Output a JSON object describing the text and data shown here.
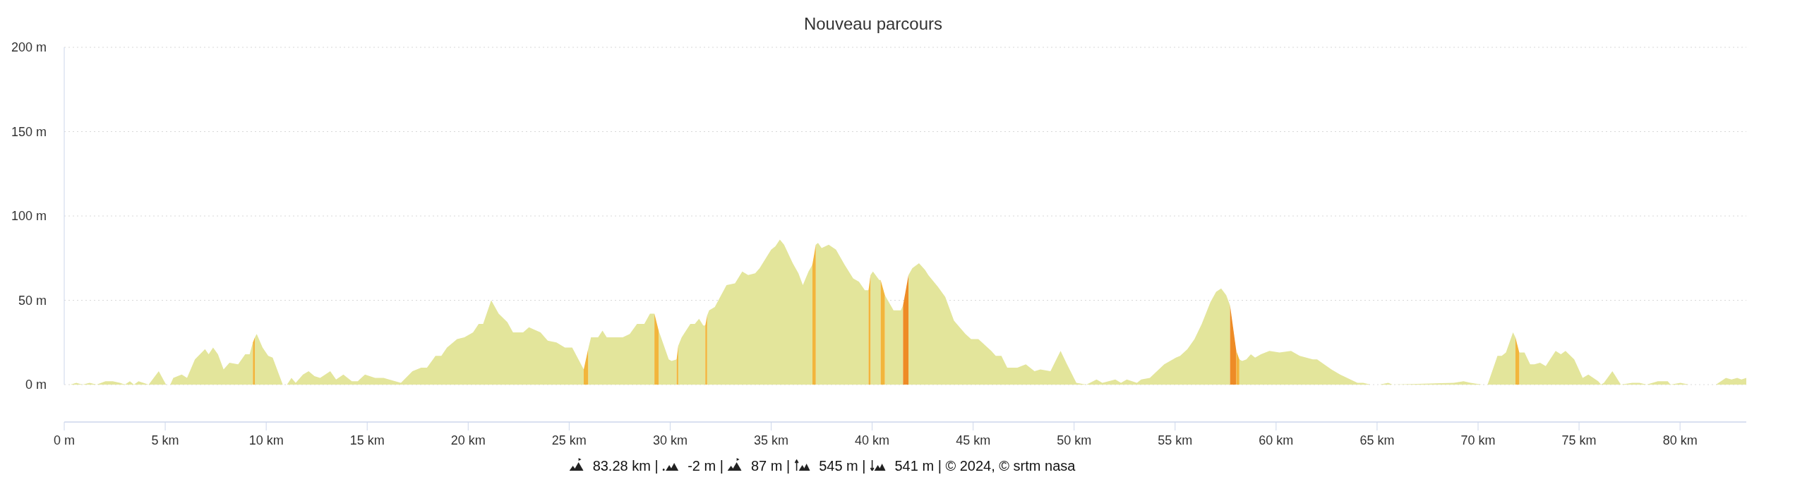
{
  "chart_data": {
    "type": "area",
    "title": "Nouveau parcours",
    "xlim": [
      0,
      83.28
    ],
    "xticks": [
      {
        "value": 0,
        "label": "0 m"
      },
      {
        "value": 5,
        "label": "5 km"
      },
      {
        "value": 10,
        "label": "10 km"
      },
      {
        "value": 15,
        "label": "15 km"
      },
      {
        "value": 20,
        "label": "20 km"
      },
      {
        "value": 25,
        "label": "25 km"
      },
      {
        "value": 30,
        "label": "30 km"
      },
      {
        "value": 35,
        "label": "35 km"
      },
      {
        "value": 40,
        "label": "40 km"
      },
      {
        "value": 45,
        "label": "45 km"
      },
      {
        "value": 50,
        "label": "50 km"
      },
      {
        "value": 55,
        "label": "55 km"
      },
      {
        "value": 60,
        "label": "60 km"
      },
      {
        "value": 65,
        "label": "65 km"
      },
      {
        "value": 70,
        "label": "70 km"
      },
      {
        "value": 75,
        "label": "75 km"
      },
      {
        "value": 80,
        "label": "80 km"
      }
    ],
    "ylim": [
      0,
      200
    ],
    "yticks": [
      {
        "value": 0,
        "label": "0 m"
      },
      {
        "value": 50,
        "label": "50 m"
      },
      {
        "value": 100,
        "label": "100 m"
      },
      {
        "value": 150,
        "label": "150 m"
      },
      {
        "value": 200,
        "label": "200 m"
      }
    ],
    "grid": "y",
    "series": [
      {
        "color": "#e3e59b",
        "x": [
          0,
          0.3,
          0.6,
          0.9,
          1.26,
          1.6,
          2.04,
          2.4,
          2.76,
          3.0,
          3.25,
          3.45,
          3.68,
          4.18,
          4.68,
          5.04,
          5.25,
          5.4,
          5.82,
          6.08,
          6.47,
          6.97,
          7.15,
          7.37,
          7.61,
          7.89,
          8.18,
          8.61,
          8.96,
          9.18,
          9.34,
          9.39,
          9.44,
          9.53,
          9.82,
          10.1,
          10.32,
          10.82,
          11.03,
          11.25,
          11.46,
          11.82,
          12.1,
          12.39,
          12.67,
          13.17,
          13.46,
          13.82,
          14.24,
          14.53,
          14.89,
          15.39,
          15.81,
          16.39,
          16.67,
          17.24,
          17.67,
          17.96,
          18.38,
          18.67,
          18.95,
          19.45,
          19.81,
          20.24,
          20.52,
          20.74,
          21.14,
          21.51,
          21.94,
          22.22,
          22.72,
          23.01,
          23.58,
          23.94,
          24.37,
          24.79,
          25.15,
          25.72,
          25.83,
          25.94,
          26.08,
          26.43,
          26.65,
          26.86,
          27.65,
          28.0,
          28.36,
          28.72,
          29.0,
          29.22,
          29.32,
          29.43,
          29.93,
          30.07,
          30.32,
          30.36,
          30.4,
          30.57,
          31.0,
          31.22,
          31.43,
          31.64,
          31.74,
          31.78,
          31.83,
          31.93,
          32.21,
          32.79,
          33.21,
          33.57,
          33.86,
          34.21,
          34.43,
          35.0,
          35.21,
          35.43,
          35.64,
          36.07,
          36.35,
          36.57,
          36.85,
          37.04,
          37.12,
          37.21,
          37.32,
          37.5,
          37.85,
          38.21,
          38.64,
          39.06,
          39.35,
          39.64,
          39.82,
          39.87,
          39.92,
          40.04,
          40.35,
          40.42,
          40.52,
          40.63,
          41.06,
          41.42,
          41.53,
          41.66,
          41.8,
          41.99,
          42.32,
          42.62,
          42.78,
          43.26,
          43.62,
          44.05,
          44.19,
          44.62,
          44.9,
          45.26,
          45.9,
          46.12,
          46.4,
          46.69,
          47.19,
          47.61,
          48.04,
          48.33,
          48.83,
          49.33,
          49.61,
          50.11,
          50.61,
          51.11,
          51.4,
          52.04,
          52.32,
          52.61,
          53.11,
          53.32,
          53.75,
          54.46,
          55.04,
          55.25,
          55.61,
          55.96,
          56.32,
          56.75,
          57.03,
          57.28,
          57.53,
          57.72,
          57.95,
          58.18,
          58.32,
          58.53,
          58.75,
          58.96,
          59.25,
          59.67,
          60.17,
          60.74,
          61.17,
          61.82,
          62.03,
          62.74,
          63.17,
          64.03,
          64.31,
          64.67,
          65.13,
          65.55,
          65.77,
          68.79,
          69.28,
          69.63,
          70.19,
          70.47,
          70.96,
          71.17,
          71.38,
          71.73,
          71.85,
          71.95,
          72.04,
          72.3,
          72.58,
          72.79,
          73.07,
          73.35,
          73.84,
          74.1,
          74.33,
          74.76,
          75.18,
          75.46,
          75.95,
          76.09,
          76.23,
          76.65,
          77.07,
          77.63,
          77.99,
          78.34,
          78.9,
          79.39,
          79.53,
          80.02,
          80.44,
          80.65,
          81.78,
          82.27,
          82.55,
          82.83,
          83.04,
          83.28
        ],
        "values": [
          0,
          0,
          1,
          0,
          1,
          0,
          2,
          2,
          1,
          0,
          2,
          0,
          2,
          0,
          8,
          0,
          0,
          4,
          6,
          4,
          15,
          21,
          18,
          22,
          18,
          9,
          13,
          12,
          18,
          18,
          25,
          null,
          28,
          30,
          22,
          17,
          16,
          0,
          0,
          4,
          1,
          6,
          8,
          5,
          4,
          8,
          3,
          6,
          2,
          2,
          6,
          4,
          4,
          2,
          1,
          8,
          10,
          10,
          17,
          17,
          22,
          27,
          28,
          31,
          36,
          36,
          50,
          42,
          37,
          31,
          31,
          34,
          31,
          26,
          25,
          22,
          22,
          9,
          null,
          21,
          28,
          28,
          32,
          28,
          28,
          30,
          36,
          36,
          42,
          42,
          null,
          32,
          15,
          14,
          15,
          null,
          23,
          28,
          36,
          36,
          39,
          35,
          35,
          null,
          41,
          44,
          46,
          59,
          60,
          67,
          65,
          66,
          69,
          80,
          82,
          86,
          83,
          72,
          66,
          59,
          67,
          71,
          null,
          83,
          84,
          81,
          83,
          80,
          71,
          63,
          61,
          56,
          56,
          null,
          65,
          67,
          62,
          62,
          null,
          53,
          44,
          44,
          47,
          null,
          65,
          69,
          72,
          68,
          65,
          58,
          52,
          38,
          36,
          30,
          27,
          27,
          20,
          17,
          17,
          10,
          10,
          12,
          8,
          9,
          8,
          20,
          13,
          1,
          0,
          3,
          1,
          3,
          1,
          3,
          1,
          3,
          4,
          12,
          16,
          17,
          21,
          27,
          36,
          49,
          55,
          57,
          53,
          47,
          null,
          15,
          14,
          15,
          18,
          16,
          18,
          20,
          19,
          20,
          17,
          15,
          15,
          9,
          6,
          1,
          1,
          0,
          0,
          1,
          0,
          1,
          2,
          1,
          0,
          0,
          17,
          17,
          19,
          31,
          28,
          null,
          19,
          19,
          12,
          12,
          13,
          11,
          20,
          18,
          20,
          15,
          4,
          6,
          2,
          0,
          1,
          8,
          0,
          1,
          1,
          0,
          2,
          2,
          0,
          1,
          0,
          0,
          0,
          4,
          3,
          4,
          3,
          4
        ]
      },
      {
        "color": "#f2b53c",
        "x": [
          9.34,
          9.44
        ],
        "values": [
          25,
          28
        ]
      },
      {
        "color": "#f2b53c",
        "x": [
          25.72,
          25.94
        ],
        "values": [
          9,
          21
        ]
      },
      {
        "color": "#f2b53c",
        "x": [
          29.22,
          29.43
        ],
        "values": [
          42,
          32
        ]
      },
      {
        "color": "#f2b53c",
        "x": [
          30.32,
          30.4
        ],
        "values": [
          15,
          23
        ]
      },
      {
        "color": "#f2b53c",
        "x": [
          31.74,
          31.83
        ],
        "values": [
          35,
          41
        ]
      },
      {
        "color": "#f2b53c",
        "x": [
          37.04,
          37.21
        ],
        "values": [
          71,
          83
        ]
      },
      {
        "color": "#f2b53c",
        "x": [
          39.82,
          39.92
        ],
        "values": [
          56,
          65
        ]
      },
      {
        "color": "#f2b53c",
        "x": [
          40.42,
          40.63
        ],
        "values": [
          62,
          53
        ]
      },
      {
        "color": "#ee8b26",
        "x": [
          41.53,
          41.8
        ],
        "values": [
          47,
          65
        ]
      },
      {
        "color": "#ee8b26",
        "x": [
          57.72,
          58.03
        ],
        "values": [
          47,
          20
        ]
      },
      {
        "color": "#f2b53c",
        "x": [
          58.03,
          58.18
        ],
        "values": [
          20,
          15
        ]
      },
      {
        "color": "#f2b53c",
        "x": [
          71.85,
          72.04
        ],
        "values": [
          28,
          19
        ]
      }
    ],
    "annotations": [
      "83.28 km |",
      "-2 m |",
      "87 m |",
      "545 m |",
      "541 m | © 2024, © srtm nasa"
    ]
  }
}
